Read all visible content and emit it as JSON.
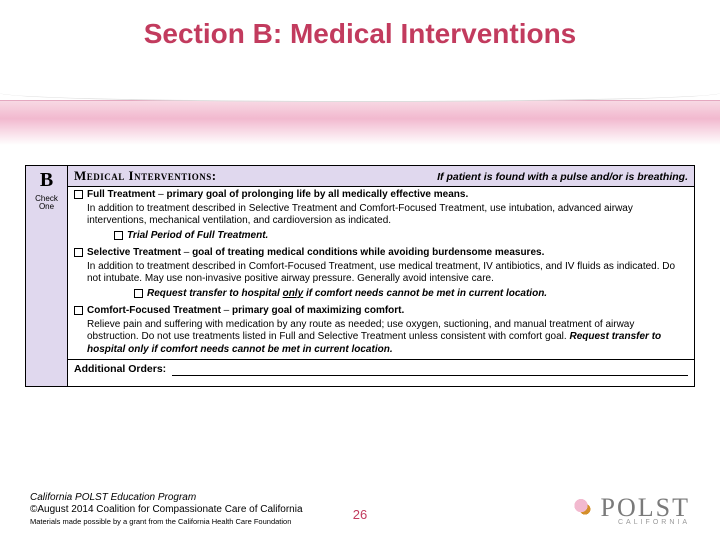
{
  "title": "Section B: Medical Interventions",
  "colors": {
    "accent": "#c23b5e",
    "band_top": "#f8d9e4",
    "band_mid": "#f2b9cf",
    "form_hdr_bg": "#e0d8ee",
    "border": "#000000",
    "text": "#000000"
  },
  "form": {
    "letter": "B",
    "check_one": "Check One",
    "header_left": "Medical Interventions:",
    "header_right": "If patient is found with a pulse and/or is breathing.",
    "options": [
      {
        "title": "Full Treatment",
        "goal": "primary goal of prolonging life by all medically effective means.",
        "body": "In addition to treatment described in Selective Treatment and Comfort-Focused Treatment, use intubation, advanced airway interventions, mechanical ventilation, and cardioversion as indicated.",
        "sub": "Trial Period of Full Treatment."
      },
      {
        "title": "Selective Treatment",
        "goal": "goal of treating medical conditions while avoiding burdensome measures.",
        "body": "In addition to treatment described in Comfort-Focused Treatment, use medical treatment, IV antibiotics, and IV fluids as indicated. Do not intubate. May use non-invasive positive airway pressure. Generally avoid intensive care.",
        "sub_prefix": "Request transfer to hospital",
        "sub_underl": "only",
        "sub_suffix": "if comfort needs cannot be met in current location."
      },
      {
        "title": "Comfort-Focused Treatment",
        "goal": "primary goal of maximizing comfort.",
        "body": "Relieve pain and suffering with medication by any route as needed; use oxygen, suctioning, and manual treatment of airway obstruction. Do not use treatments listed in Full and Selective Treatment unless consistent with comfort goal.",
        "tail": "Request transfer to hospital only if comfort needs cannot be met in current location."
      }
    ],
    "additional_label": "Additional Orders:"
  },
  "footer": {
    "line1": "California POLST Education Program",
    "line2": "©August 2014 Coalition for Compassionate Care of California",
    "line3": "Materials made possible by a grant from the California Health Care Foundation",
    "page": "26",
    "logo_text": "POLST",
    "logo_sub": "CALIFORNIA"
  }
}
